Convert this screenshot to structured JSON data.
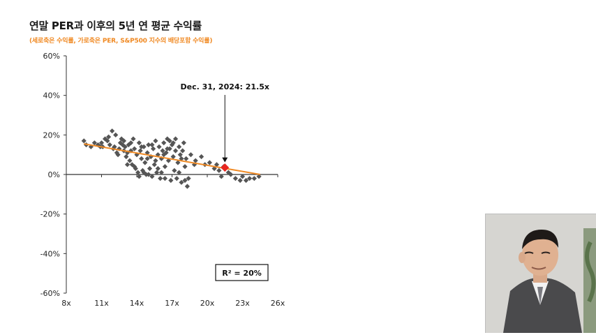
{
  "title": "연말 PER과 이후의 5년 연 평균 수익률",
  "subtitle": "(세로축은 수익률, 가로축은 PER, S&P500 지수의 배당포함 수익률)",
  "chart_data": {
    "type": "scatter",
    "title": "연말 PER과 이후의 5년 연 평균 수익률",
    "subtitle": "(세로축은 수익률, 가로축은 PER, S&P500 지수의 배당포함 수익률)",
    "xlabel": "",
    "ylabel": "",
    "xlim": [
      8,
      26
    ],
    "ylim": [
      -60,
      60
    ],
    "x_ticks": [
      8,
      11,
      14,
      17,
      20,
      23,
      26
    ],
    "x_tick_labels": [
      "8x",
      "11x",
      "14x",
      "17x",
      "20x",
      "23x",
      "26x"
    ],
    "y_ticks": [
      60,
      40,
      20,
      0,
      -20,
      -40,
      -60
    ],
    "y_tick_labels": [
      "60%",
      "40%",
      "20%",
      "0%",
      "-20%",
      "-40%",
      "-60%"
    ],
    "grid": "horizontal",
    "marker_color": "#555555",
    "trend_color": "#f08a24",
    "highlight_color": "#e8251f",
    "trendline": {
      "x": [
        9.5,
        24.5
      ],
      "y": [
        15.5,
        0
      ]
    },
    "highlight_point": {
      "x": 21.5,
      "y": 3.5
    },
    "annotation": {
      "text": "Dec. 31, 2024:  21.5x",
      "x": 21.5,
      "y": 4
    },
    "r2_box": {
      "text": "R²  = 20%"
    },
    "points": [
      [
        9.5,
        17
      ],
      [
        9.7,
        15
      ],
      [
        10.1,
        14
      ],
      [
        10.4,
        16
      ],
      [
        10.7,
        15
      ],
      [
        11.0,
        16
      ],
      [
        11.1,
        14
      ],
      [
        11.3,
        18
      ],
      [
        11.5,
        17
      ],
      [
        11.7,
        15
      ],
      [
        11.9,
        22
      ],
      [
        12.0,
        13
      ],
      [
        12.2,
        20
      ],
      [
        12.3,
        11
      ],
      [
        12.5,
        13
      ],
      [
        12.6,
        16
      ],
      [
        12.8,
        15
      ],
      [
        12.9,
        12
      ],
      [
        13.0,
        14
      ],
      [
        13.1,
        9
      ],
      [
        13.2,
        11
      ],
      [
        13.3,
        15
      ],
      [
        13.4,
        7
      ],
      [
        13.5,
        12
      ],
      [
        13.6,
        5
      ],
      [
        13.7,
        18
      ],
      [
        13.8,
        13
      ],
      [
        13.9,
        3
      ],
      [
        14.0,
        10
      ],
      [
        14.1,
        1
      ],
      [
        14.2,
        16
      ],
      [
        14.3,
        12
      ],
      [
        14.4,
        8
      ],
      [
        14.5,
        2
      ],
      [
        14.6,
        14
      ],
      [
        14.7,
        6
      ],
      [
        14.8,
        0
      ],
      [
        14.9,
        11
      ],
      [
        15.0,
        15
      ],
      [
        15.1,
        3
      ],
      [
        15.2,
        9
      ],
      [
        15.3,
        -1
      ],
      [
        15.4,
        13
      ],
      [
        15.5,
        5
      ],
      [
        15.6,
        17
      ],
      [
        15.7,
        1
      ],
      [
        15.8,
        10
      ],
      [
        15.9,
        14
      ],
      [
        16.0,
        -2
      ],
      [
        16.1,
        8
      ],
      [
        16.2,
        12
      ],
      [
        16.3,
        16
      ],
      [
        16.4,
        4
      ],
      [
        16.5,
        11
      ],
      [
        16.6,
        18
      ],
      [
        16.7,
        7
      ],
      [
        16.8,
        13
      ],
      [
        16.9,
        -3
      ],
      [
        17.0,
        15
      ],
      [
        17.1,
        9
      ],
      [
        17.2,
        2
      ],
      [
        17.3,
        12
      ],
      [
        17.4,
        -2
      ],
      [
        17.5,
        6
      ],
      [
        17.6,
        14
      ],
      [
        17.7,
        10
      ],
      [
        17.8,
        -4
      ],
      [
        17.9,
        12
      ],
      [
        18.0,
        16
      ],
      [
        18.1,
        4
      ],
      [
        18.2,
        8
      ],
      [
        18.3,
        -6
      ],
      [
        18.4,
        -2
      ],
      [
        18.6,
        10
      ],
      [
        19.0,
        7
      ],
      [
        19.5,
        9
      ],
      [
        19.8,
        5
      ],
      [
        20.2,
        6
      ],
      [
        20.6,
        3
      ],
      [
        20.8,
        5
      ],
      [
        21.0,
        2
      ],
      [
        21.2,
        -1
      ],
      [
        21.4,
        4
      ],
      [
        21.8,
        1
      ],
      [
        22.0,
        0
      ],
      [
        22.4,
        -2
      ],
      [
        22.8,
        -3
      ],
      [
        23.0,
        -1
      ],
      [
        23.3,
        -3
      ],
      [
        23.6,
        -2
      ],
      [
        24.0,
        -2
      ],
      [
        24.4,
        -1
      ],
      [
        14.2,
        -1
      ],
      [
        14.6,
        1
      ],
      [
        15.0,
        0
      ],
      [
        16.1,
        1
      ],
      [
        16.4,
        -2
      ],
      [
        13.8,
        4
      ],
      [
        12.7,
        18
      ],
      [
        15.3,
        15
      ],
      [
        16.8,
        17
      ],
      [
        17.1,
        16
      ],
      [
        17.3,
        18
      ],
      [
        16.6,
        13
      ],
      [
        14.9,
        8
      ],
      [
        15.6,
        7
      ],
      [
        13.5,
        16
      ],
      [
        12.1,
        14
      ],
      [
        12.9,
        17
      ],
      [
        11.6,
        19
      ],
      [
        10.9,
        14
      ],
      [
        12.4,
        10
      ],
      [
        15.8,
        3
      ],
      [
        17.6,
        1
      ],
      [
        18.9,
        5
      ],
      [
        18.1,
        -3
      ],
      [
        13.2,
        5
      ],
      [
        14.4,
        14
      ],
      [
        16.3,
        10
      ],
      [
        17.8,
        8
      ]
    ]
  }
}
